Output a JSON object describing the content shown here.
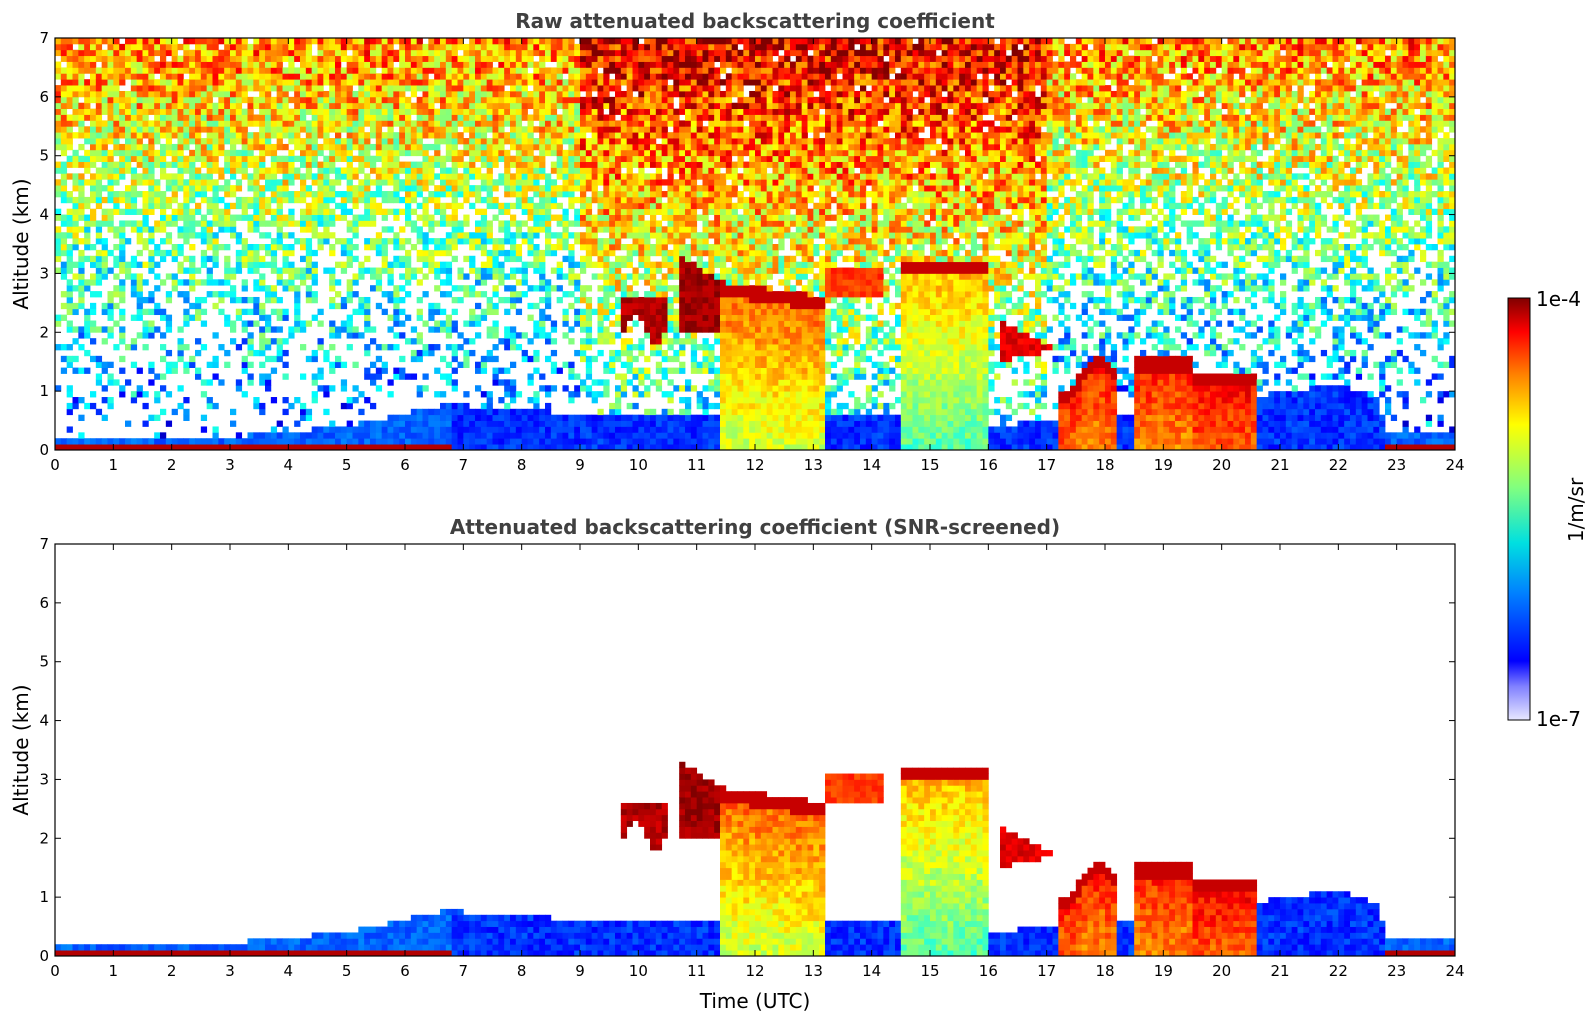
{
  "colors": {
    "cloud_dark_red": "#800000",
    "cloud_orange": "#ff6a00",
    "aerosol_blue": "#0a3cff",
    "clear_air_green": "#6cd96c",
    "layer_edge_black": "#000000"
  },
  "colorbar": {
    "max_label": "1e-4",
    "min_label": "1e-7",
    "unit_label": "1/m/sr",
    "scale": "log"
  },
  "chart_data": [
    {
      "type": "heatmap",
      "title": "Raw attenuated backscattering coefficient",
      "xlabel": "",
      "ylabel": "Altitude (km)",
      "xlim": [
        0,
        24
      ],
      "ylim": [
        0,
        7
      ],
      "xticks": [
        "0",
        "1",
        "2",
        "3",
        "4",
        "5",
        "6",
        "7",
        "8",
        "9",
        "10",
        "11",
        "12",
        "13",
        "14",
        "15",
        "16",
        "17",
        "18",
        "19",
        "20",
        "21",
        "22",
        "23",
        "24"
      ],
      "yticks": [
        "0",
        "1",
        "2",
        "3",
        "4",
        "5",
        "6",
        "7"
      ],
      "grid": false,
      "screened": false
    },
    {
      "type": "heatmap",
      "title": "Attenuated backscattering coefficient (SNR-screened)",
      "xlabel": "Time (UTC)",
      "ylabel": "Altitude (km)",
      "xlim": [
        0,
        24
      ],
      "ylim": [
        0,
        7
      ],
      "xticks": [
        "0",
        "1",
        "2",
        "3",
        "4",
        "5",
        "6",
        "7",
        "8",
        "9",
        "10",
        "11",
        "12",
        "13",
        "14",
        "15",
        "16",
        "17",
        "18",
        "19",
        "20",
        "21",
        "22",
        "23",
        "24"
      ],
      "yticks": [
        "0",
        "1",
        "2",
        "3",
        "4",
        "5",
        "6",
        "7"
      ],
      "grid": false,
      "screened": true
    }
  ]
}
